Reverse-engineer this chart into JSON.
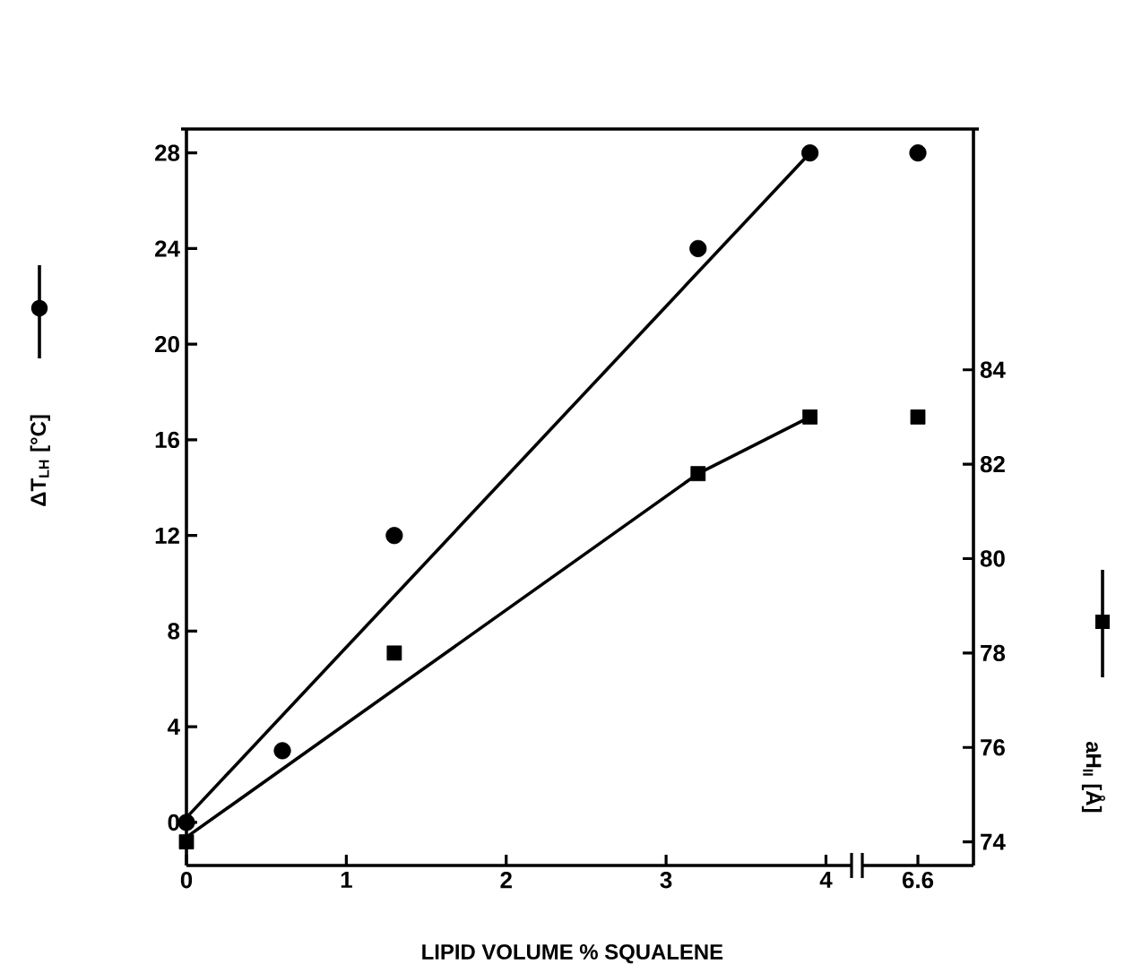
{
  "chart_data": [
    {
      "type": "scatter",
      "xlabel": "LIPID VOLUME % SQUALENE",
      "ylabel": "ΔT$_{LH}$ [°C]",
      "xlim": [
        0,
        4.16
      ],
      "xticks": [
        0,
        1,
        2,
        3,
        4
      ],
      "ylim": [
        -1.8,
        29
      ],
      "yticks": [
        0,
        4,
        8,
        12,
        16,
        20,
        24,
        28
      ],
      "y2lim": [
        73.5,
        89.1
      ],
      "series": [
        {
          "marker": "circle",
          "color": "#000000",
          "x": [
            0,
            0.6,
            1.3,
            3.2,
            3.9
          ],
          "values": [
            0,
            3,
            12,
            24,
            28
          ]
        },
        {
          "marker": "square",
          "axis": "y2",
          "color": "#000000",
          "x": [
            0,
            1.3,
            3.2,
            3.9
          ],
          "values": [
            74,
            78,
            81.8,
            83
          ]
        },
        {
          "type": "line",
          "line_style": "solid",
          "color": "#000000",
          "x": [
            0,
            3.9
          ],
          "values": [
            0.2,
            28
          ]
        },
        {
          "type": "line",
          "line_style": "solid",
          "axis": "y2",
          "color": "#000000",
          "x": [
            0,
            3.2,
            3.9
          ],
          "values": [
            74.1,
            81.8,
            83
          ]
        }
      ]
    },
    {
      "type": "scatter",
      "y2label": "aH$_{II}$ [Å]",
      "categories": [
        "6.6"
      ],
      "ylim": [
        -1.8,
        29
      ],
      "y2lim": [
        73.5,
        89.1
      ],
      "y2ticks": [
        74,
        76,
        78,
        80,
        82,
        84
      ],
      "series": [
        {
          "marker": "circle",
          "color": "#000000",
          "values": [
            28
          ]
        },
        {
          "marker": "square",
          "axis": "y2",
          "color": "#000000",
          "values": [
            83
          ]
        }
      ]
    }
  ]
}
